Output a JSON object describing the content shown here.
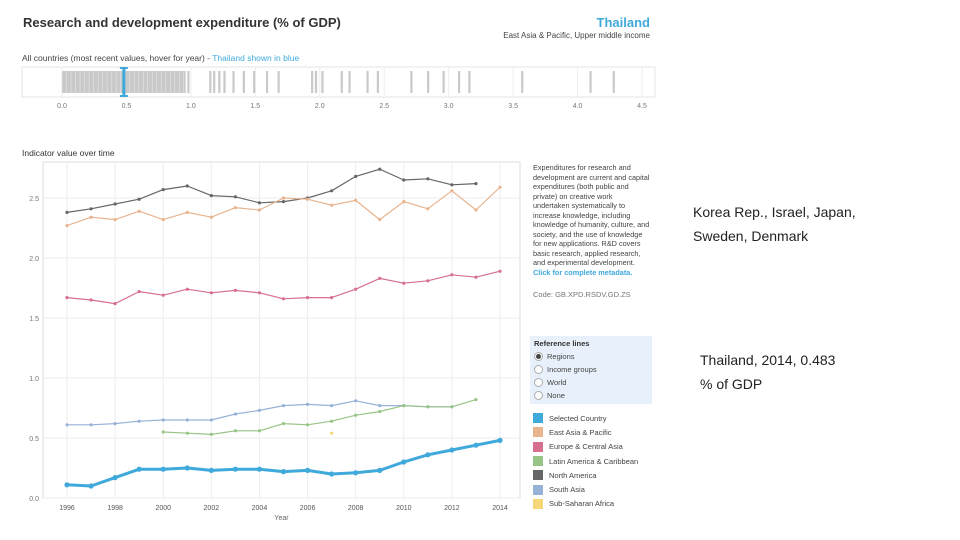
{
  "header": {
    "title": "Research and development expenditure (% of GDP)",
    "country": "Thailand",
    "region": "East Asia & Pacific, Upper middle income"
  },
  "strip": {
    "label": "All countries (most recent values, hover for year) - ",
    "highlight": "Thailand shown in blue"
  },
  "line_title": "Indicator value over time",
  "description": {
    "text": "Expenditures for research and development are current and capital expenditures (both public and private) on creative work undertaken systematically to increase knowledge, including knowledge of humanity, culture, and society, and the use of knowledge for new applications. R&D covers basic research, applied research, and experimental development.",
    "link": "Click for complete metadata.",
    "code": "Code: GB.XPD.RSDV.GD.ZS"
  },
  "reference": {
    "title": "Reference lines",
    "options": [
      "Regions",
      "Income groups",
      "World",
      "None"
    ],
    "selected": "Regions"
  },
  "notes": {
    "top": "Korea Rep., Israel, Japan, Sweden, Denmark",
    "bottom": "Thailand, 2014, 0.483 % of GDP"
  },
  "chart_data": [
    {
      "type": "strip",
      "xlim": [
        0,
        4.5
      ],
      "ticks": [
        "0.0",
        "0.5",
        "1.0",
        "1.5",
        "2.0",
        "2.5",
        "3.0",
        "3.5",
        "4.0",
        "4.5"
      ],
      "highlight_value": 0.48,
      "highlight_color": "#3fa9db",
      "dense_range": [
        0,
        0.96
      ],
      "values": [
        0.98,
        1.15,
        1.18,
        1.22,
        1.26,
        1.33,
        1.41,
        1.49,
        1.59,
        1.68,
        1.94,
        1.97,
        2.02,
        2.17,
        2.23,
        2.37,
        2.45,
        2.71,
        2.84,
        2.96,
        3.08,
        3.16,
        3.57,
        4.1,
        4.28
      ]
    },
    {
      "type": "line",
      "xlabel": "Year",
      "ylim": [
        0,
        2.8
      ],
      "xlim": [
        1995.5,
        2014.5
      ],
      "yticks": [
        "0.0",
        "0.5",
        "1.0",
        "1.5",
        "2.0",
        "2.5"
      ],
      "xticks": [
        "1996",
        "1998",
        "2000",
        "2002",
        "2004",
        "2006",
        "2008",
        "2010",
        "2012",
        "2014"
      ],
      "grid": true,
      "series": [
        {
          "name": "North America",
          "color": "#666666",
          "start": 1996,
          "values": [
            2.38,
            2.41,
            2.45,
            2.49,
            2.57,
            2.6,
            2.52,
            2.51,
            2.46,
            2.47,
            2.5,
            2.56,
            2.68,
            2.74,
            2.65,
            2.66,
            2.61,
            2.62
          ]
        },
        {
          "name": "East Asia & Pacific",
          "color": "#e8b48f",
          "start": 1996,
          "values": [
            2.27,
            2.34,
            2.32,
            2.39,
            2.32,
            2.38,
            2.34,
            2.42,
            2.4,
            2.5,
            2.49,
            2.44,
            2.48,
            2.32,
            2.47,
            2.41,
            2.56,
            2.4,
            2.59
          ]
        },
        {
          "name": "Europe & Central Asia",
          "color": "#d6708e",
          "start": 1996,
          "values": [
            1.67,
            1.65,
            1.62,
            1.72,
            1.69,
            1.74,
            1.71,
            1.73,
            1.71,
            1.66,
            1.67,
            1.67,
            1.74,
            1.83,
            1.79,
            1.81,
            1.86,
            1.84,
            1.89
          ]
        },
        {
          "name": "South Asia",
          "color": "#97b2d6",
          "start": 1996,
          "values": [
            0.61,
            0.61,
            0.62,
            0.64,
            0.65,
            0.65,
            0.65,
            0.7,
            0.73,
            0.77,
            0.78,
            0.77,
            0.81,
            0.77,
            0.77,
            0.76,
            0.76
          ]
        },
        {
          "name": "Latin America & Caribbean",
          "color": "#98c487",
          "start": 2000,
          "values": [
            0.55,
            0.54,
            0.53,
            0.56,
            0.56,
            0.62,
            0.61,
            0.64,
            0.69,
            0.72,
            0.77,
            0.76,
            0.76,
            0.82
          ]
        },
        {
          "name": "Sub-Saharan Africa",
          "color": "#f5d77a",
          "start": 2007,
          "values": [
            0.54
          ]
        },
        {
          "name": "Selected Country",
          "color": "#3fa9db",
          "start": 1996,
          "width": 3,
          "values": [
            0.11,
            0.1,
            0.17,
            0.24,
            0.24,
            0.25,
            0.23,
            0.24,
            0.24,
            0.22,
            0.23,
            0.2,
            0.21,
            0.23,
            0.3,
            0.36,
            0.4,
            0.44,
            0.48
          ]
        }
      ]
    }
  ],
  "legend": [
    {
      "label": "Selected Country",
      "color": "#3fa9db"
    },
    {
      "label": "East Asia & Pacific",
      "color": "#e8b48f"
    },
    {
      "label": "Europe & Central Asia",
      "color": "#d6708e"
    },
    {
      "label": "Latin America & Caribbean",
      "color": "#98c487"
    },
    {
      "label": "North America",
      "color": "#666666"
    },
    {
      "label": "South Asia",
      "color": "#97b2d6"
    },
    {
      "label": "Sub-Saharan Africa",
      "color": "#f5d77a"
    }
  ]
}
